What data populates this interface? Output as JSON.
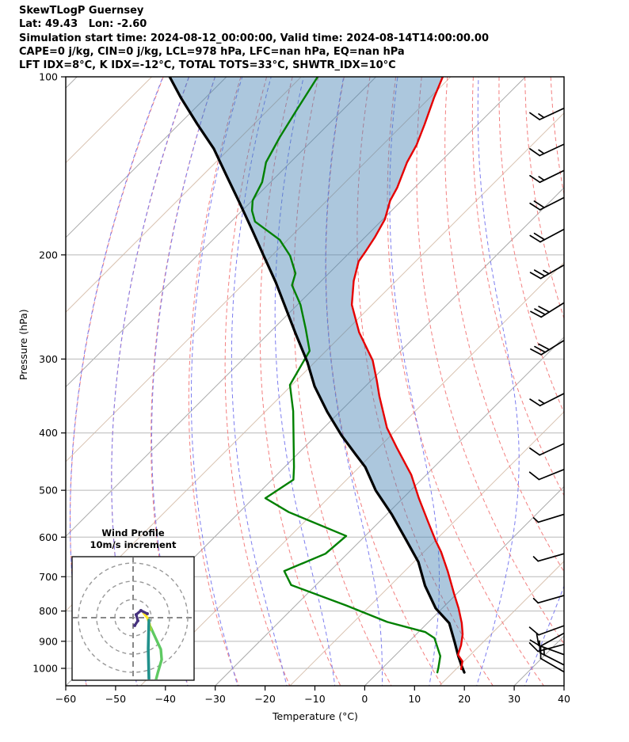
{
  "header": {
    "line1": "SkewTLogP Guernsey",
    "line2": "Lat: 49.43   Lon: -2.60",
    "line3": "Simulation start time: 2024-08-12_00:00:00, Valid time: 2024-08-14T14:00:00.00",
    "line4": "CAPE=0 j/kg, CIN=0 j/kg, LCL=978 hPa, LFC=nan hPa, EQ=nan hPa",
    "line5": "LFT IDX=8°C, K IDX=-12°C, TOTAL TOTS=33°C, SHWTR_IDX=10°C"
  },
  "axes": {
    "x_label": "Temperature (°C)",
    "y_label": "Pressure (hPa)",
    "x_tick_values": [
      -60,
      -50,
      -40,
      -30,
      -20,
      -10,
      0,
      10,
      20,
      30,
      40
    ],
    "x_tick_labels": [
      "−60",
      "−50",
      "−40",
      "−30",
      "−20",
      "−10",
      "0",
      "10",
      "20",
      "30",
      "40"
    ],
    "y_tick_values": [
      100,
      200,
      300,
      400,
      500,
      600,
      700,
      800,
      900,
      1000
    ],
    "y_tick_labels": [
      "100",
      "200",
      "300",
      "400",
      "500",
      "600",
      "700",
      "800",
      "900",
      "1000"
    ]
  },
  "inset": {
    "title_line1": "Wind Profile",
    "title_line2": "10m/s increment"
  },
  "chart_data": {
    "type": "skewt-logp",
    "title": "SkewTLogP Guernsey",
    "pressure_axis": {
      "scale": "log",
      "range": [
        100,
        1070
      ],
      "ticks": [
        100,
        200,
        300,
        400,
        500,
        600,
        700,
        800,
        900,
        1000
      ]
    },
    "temperature_axis": {
      "range": [
        -60,
        40
      ],
      "skew_deg": 45,
      "ticks": [
        -60,
        -50,
        -40,
        -30,
        -20,
        -10,
        0,
        10,
        20,
        30,
        40
      ]
    },
    "background": {
      "isobars": [
        200,
        300,
        400,
        500,
        600,
        700,
        800,
        900,
        1000
      ],
      "isobar_color": "#b8b8b8",
      "isotherms": {
        "min": -180,
        "max": 45,
        "step": 15,
        "major_every": 30,
        "major_color": "#a9a9a9",
        "minor_color": "#d9c2b0"
      },
      "dry_adiabats": {
        "theta_min": -60,
        "theta_max": 200,
        "step": 10,
        "color": "#f37f7f"
      },
      "moist_adiabats": {
        "thetaw_min": -60,
        "thetaw_max": 40,
        "step": 10,
        "color": "#7d7def"
      }
    },
    "shaded_region": {
      "between": [
        "parcel",
        "temperature"
      ],
      "color": "rgba(70,130,180,0.45)"
    },
    "series": {
      "temperature": {
        "name": "Temperature",
        "color": "#e60000",
        "width": 2.4,
        "points": [
          {
            "p": 100.0,
            "t": -106.6
          },
          {
            "p": 108.3,
            "t": -104.2
          },
          {
            "p": 120.3,
            "t": -100.7
          },
          {
            "p": 130.3,
            "t": -98.2
          },
          {
            "p": 139.5,
            "t": -96.6
          },
          {
            "p": 153.9,
            "t": -93.5
          },
          {
            "p": 161.9,
            "t": -92.3
          },
          {
            "p": 174.2,
            "t": -89.6
          },
          {
            "p": 186.9,
            "t": -88.0
          },
          {
            "p": 197.7,
            "t": -87.0
          },
          {
            "p": 205.2,
            "t": -86.4
          },
          {
            "p": 221.3,
            "t": -83.5
          },
          {
            "p": 242.8,
            "t": -79.1
          },
          {
            "p": 270.3,
            "t": -72.1
          },
          {
            "p": 301.7,
            "t": -63.7
          },
          {
            "p": 325.9,
            "t": -58.9
          },
          {
            "p": 346.6,
            "t": -55.2
          },
          {
            "p": 392.3,
            "t": -47.3
          },
          {
            "p": 423.4,
            "t": -41.4
          },
          {
            "p": 456.8,
            "t": -35.4
          },
          {
            "p": 470.9,
            "t": -33.0
          },
          {
            "p": 515.6,
            "t": -26.8
          },
          {
            "p": 564.5,
            "t": -20.3
          },
          {
            "p": 608.3,
            "t": -14.9
          },
          {
            "p": 636.0,
            "t": -11.5
          },
          {
            "p": 684.6,
            "t": -6.4
          },
          {
            "p": 747.3,
            "t": -0.6
          },
          {
            "p": 791.7,
            "t": 3.3
          },
          {
            "p": 838.7,
            "t": 6.9
          },
          {
            "p": 875.6,
            "t": 9.3
          },
          {
            "p": 914.1,
            "t": 11.2
          },
          {
            "p": 948.6,
            "t": 12.5
          },
          {
            "p": 973.0,
            "t": 14.7
          },
          {
            "p": 1003.0,
            "t": 16.0
          }
        ]
      },
      "dewpoint": {
        "name": "Dewpoint",
        "color": "#008000",
        "width": 2.4,
        "points": [
          {
            "p": 100.0,
            "t": -131.7
          },
          {
            "p": 114.2,
            "t": -129.2
          },
          {
            "p": 126.4,
            "t": -127.2
          },
          {
            "p": 139.5,
            "t": -124.9
          },
          {
            "p": 143.9,
            "t": -123.6
          },
          {
            "p": 150.7,
            "t": -121.7
          },
          {
            "p": 161.9,
            "t": -119.9
          },
          {
            "p": 168.4,
            "t": -118.0
          },
          {
            "p": 175.7,
            "t": -115.2
          },
          {
            "p": 188.6,
            "t": -106.6
          },
          {
            "p": 200.7,
            "t": -101.3
          },
          {
            "p": 214.9,
            "t": -96.7
          },
          {
            "p": 225.1,
            "t": -95.0
          },
          {
            "p": 242.8,
            "t": -89.4
          },
          {
            "p": 266.7,
            "t": -83.5
          },
          {
            "p": 290.6,
            "t": -78.3
          },
          {
            "p": 331.8,
            "t": -75.4
          },
          {
            "p": 367.4,
            "t": -69.5
          },
          {
            "p": 456.8,
            "t": -58.1
          },
          {
            "p": 479.7,
            "t": -55.7
          },
          {
            "p": 515.6,
            "t": -57.6
          },
          {
            "p": 544.4,
            "t": -50.1
          },
          {
            "p": 597.2,
            "t": -33.8
          },
          {
            "p": 639.9,
            "t": -34.4
          },
          {
            "p": 684.6,
            "t": -39.2
          },
          {
            "p": 722.9,
            "t": -35.0
          },
          {
            "p": 782.6,
            "t": -19.9
          },
          {
            "p": 834.8,
            "t": -8.3
          },
          {
            "p": 868.3,
            "t": 1.4
          },
          {
            "p": 888.6,
            "t": 4.4
          },
          {
            "p": 953.2,
            "t": 9.2
          },
          {
            "p": 996.1,
            "t": 11.1
          },
          {
            "p": 1016.0,
            "t": 11.9
          }
        ]
      },
      "parcel": {
        "name": "Parcel path",
        "color": "#000000",
        "width": 3.2,
        "points": [
          {
            "p": 100.0,
            "t": -161.4
          },
          {
            "p": 108.3,
            "t": -155.1
          },
          {
            "p": 120.3,
            "t": -146.3
          },
          {
            "p": 132.3,
            "t": -138.1
          },
          {
            "p": 147.4,
            "t": -129.9
          },
          {
            "p": 163.9,
            "t": -121.8
          },
          {
            "p": 181.3,
            "t": -114.2
          },
          {
            "p": 200.7,
            "t": -106.6
          },
          {
            "p": 222.7,
            "t": -98.8
          },
          {
            "p": 246.6,
            "t": -91.5
          },
          {
            "p": 273.1,
            "t": -84.2
          },
          {
            "p": 303.5,
            "t": -76.5
          },
          {
            "p": 333.5,
            "t": -70.2
          },
          {
            "p": 368.5,
            "t": -62.5
          },
          {
            "p": 403.9,
            "t": -54.9
          },
          {
            "p": 435.2,
            "t": -48.2
          },
          {
            "p": 456.8,
            "t": -43.8
          },
          {
            "p": 500.4,
            "t": -37.0
          },
          {
            "p": 549.0,
            "t": -29.0
          },
          {
            "p": 602.6,
            "t": -21.5
          },
          {
            "p": 660.9,
            "t": -14.1
          },
          {
            "p": 724.9,
            "t": -8.0
          },
          {
            "p": 791.7,
            "t": -1.3
          },
          {
            "p": 838.7,
            "t": 4.4
          },
          {
            "p": 901.7,
            "t": 9.2
          },
          {
            "p": 953.2,
            "t": 12.8
          },
          {
            "p": 987.0,
            "t": 15.2
          },
          {
            "p": 1016.0,
            "t": 17.3
          }
        ]
      }
    },
    "wind_barbs": {
      "color": "#000000",
      "barbs": [
        {
          "p": 113,
          "speed": 15,
          "ang": 205
        },
        {
          "p": 130,
          "speed": 15,
          "ang": 205
        },
        {
          "p": 144,
          "speed": 15,
          "ang": 206
        },
        {
          "p": 160,
          "speed": 20,
          "ang": 207
        },
        {
          "p": 181,
          "speed": 20,
          "ang": 208
        },
        {
          "p": 208,
          "speed": 25,
          "ang": 210
        },
        {
          "p": 241,
          "speed": 30,
          "ang": 212
        },
        {
          "p": 279,
          "speed": 30,
          "ang": 212
        },
        {
          "p": 343,
          "speed": 15,
          "ang": 207
        },
        {
          "p": 417,
          "speed": 10,
          "ang": 205
        },
        {
          "p": 461,
          "speed": 10,
          "ang": 202
        },
        {
          "p": 549,
          "speed": 5,
          "ang": 197
        },
        {
          "p": 640,
          "speed": 5,
          "ang": 196
        },
        {
          "p": 753,
          "speed": 5,
          "ang": 196
        },
        {
          "p": 847,
          "speed": 10,
          "ang": 200
        },
        {
          "p": 872,
          "speed": 10,
          "ang": 209
        },
        {
          "p": 911,
          "speed": 10,
          "ang": 195
        },
        {
          "p": 948,
          "speed": 10,
          "ang": 160
        },
        {
          "p": 987,
          "speed": 15,
          "ang": 153
        },
        {
          "p": 1014,
          "speed": 10,
          "ang": 150
        }
      ]
    },
    "hodograph": {
      "rings_ms": [
        10,
        20,
        30
      ],
      "segments": [
        {
          "name": "low-level",
          "color": "#5ec962",
          "width": 3.4,
          "points": [
            [
              9.6,
              -5.2
            ],
            [
              12.2,
              -10.9
            ],
            [
              15.2,
              -17.4
            ],
            [
              15.7,
              -23.0
            ],
            [
              13.5,
              -30.4
            ],
            [
              12.6,
              -33.9
            ]
          ]
        },
        {
          "name": "transition",
          "color": "#b5de2b",
          "width": 3.2,
          "points": [
            [
              9.1,
              -3.5
            ],
            [
              9.6,
              -6.5
            ]
          ]
        },
        {
          "name": "mid-level",
          "color": "#fde725",
          "width": 3.2,
          "points": [
            [
              5.7,
              2.6
            ],
            [
              7.8,
              0.0
            ],
            [
              9.1,
              -3.5
            ]
          ]
        },
        {
          "name": "deep-layer",
          "color": "#21918c",
          "width": 3.6,
          "points": [
            [
              8.7,
              -1.3
            ],
            [
              8.3,
              -17.0
            ],
            [
              8.7,
              -33.5
            ]
          ]
        },
        {
          "name": "upper-level",
          "color": "#46327e",
          "width": 3.2,
          "points": [
            [
              7.8,
              2.2
            ],
            [
              4.3,
              3.9
            ],
            [
              1.7,
              1.7
            ],
            [
              2.6,
              -1.7
            ],
            [
              0.9,
              -4.3
            ]
          ]
        }
      ]
    }
  }
}
